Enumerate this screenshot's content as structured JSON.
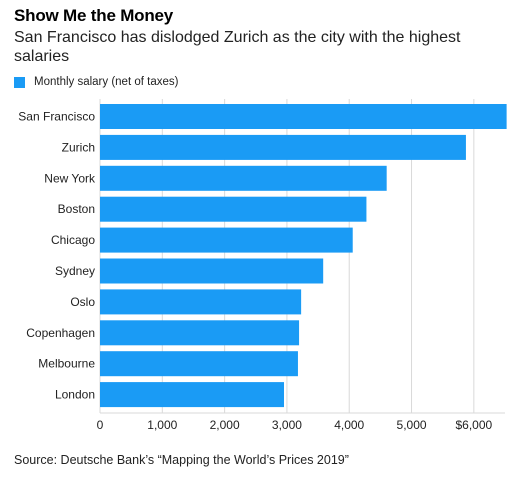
{
  "title": "Show Me the Money",
  "subtitle": "San Francisco has dislodged Zurich as the city with the highest salaries",
  "source": "Source: Deutsche Bank’s “Mapping the World’s Prices 2019”",
  "colors": {
    "bar": "#1a9bf5",
    "grid": "#d9d9d9",
    "axis": "#555555"
  },
  "chart_data": {
    "type": "bar",
    "orientation": "horizontal",
    "categories": [
      "San Francisco",
      "Zurich",
      "New York",
      "Boston",
      "Chicago",
      "Sydney",
      "Oslo",
      "Copenhagen",
      "Melbourne",
      "London"
    ],
    "series": [
      {
        "name": "Monthly salary (net of taxes)",
        "values": [
          6526,
          5873,
          4601,
          4276,
          4056,
          3582,
          3228,
          3195,
          3177,
          2953
        ]
      }
    ],
    "xlim": [
      0,
      6500
    ],
    "x_ticks": [
      0,
      1000,
      2000,
      3000,
      4000,
      5000,
      6000
    ],
    "x_tick_labels": [
      "0",
      "1,000",
      "2,000",
      "3,000",
      "4,000",
      "5,000",
      "$6,000"
    ],
    "grid": true,
    "legend": "top-left"
  }
}
